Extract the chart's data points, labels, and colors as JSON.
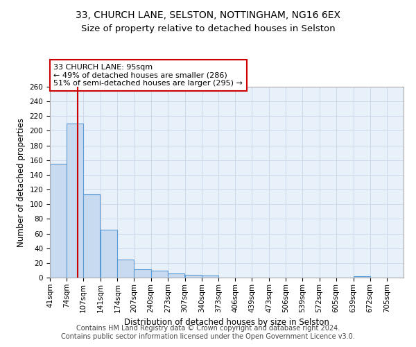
{
  "title_line1": "33, CHURCH LANE, SELSTON, NOTTINGHAM, NG16 6EX",
  "title_line2": "Size of property relative to detached houses in Selston",
  "xlabel": "Distribution of detached houses by size in Selston",
  "ylabel": "Number of detached properties",
  "bin_edges": [
    41,
    74,
    107,
    141,
    174,
    207,
    240,
    273,
    307,
    340,
    373,
    406,
    439,
    473,
    506,
    539,
    572,
    605,
    639,
    672,
    705
  ],
  "bar_heights": [
    155,
    210,
    113,
    65,
    25,
    11,
    9,
    6,
    4,
    3,
    0,
    0,
    0,
    0,
    0,
    0,
    0,
    0,
    2,
    0,
    0
  ],
  "bar_color": "#c8daf0",
  "bar_edge_color": "#5b9bd5",
  "bar_edge_width": 0.8,
  "property_size": 95,
  "red_line_color": "#cc0000",
  "annotation_text": "33 CHURCH LANE: 95sqm\n← 49% of detached houses are smaller (286)\n51% of semi-detached houses are larger (295) →",
  "annotation_box_color": "white",
  "annotation_box_edge_color": "#cc0000",
  "ylim": [
    0,
    260
  ],
  "yticks": [
    0,
    20,
    40,
    60,
    80,
    100,
    120,
    140,
    160,
    180,
    200,
    220,
    240,
    260
  ],
  "background_color": "#e8f0fa",
  "grid_color": "#c8d4e8",
  "footer_line1": "Contains HM Land Registry data © Crown copyright and database right 2024.",
  "footer_line2": "Contains public sector information licensed under the Open Government Licence v3.0.",
  "title_fontsize": 10,
  "subtitle_fontsize": 9.5,
  "axis_label_fontsize": 8.5,
  "tick_fontsize": 7.5,
  "annotation_fontsize": 8,
  "footer_fontsize": 7
}
